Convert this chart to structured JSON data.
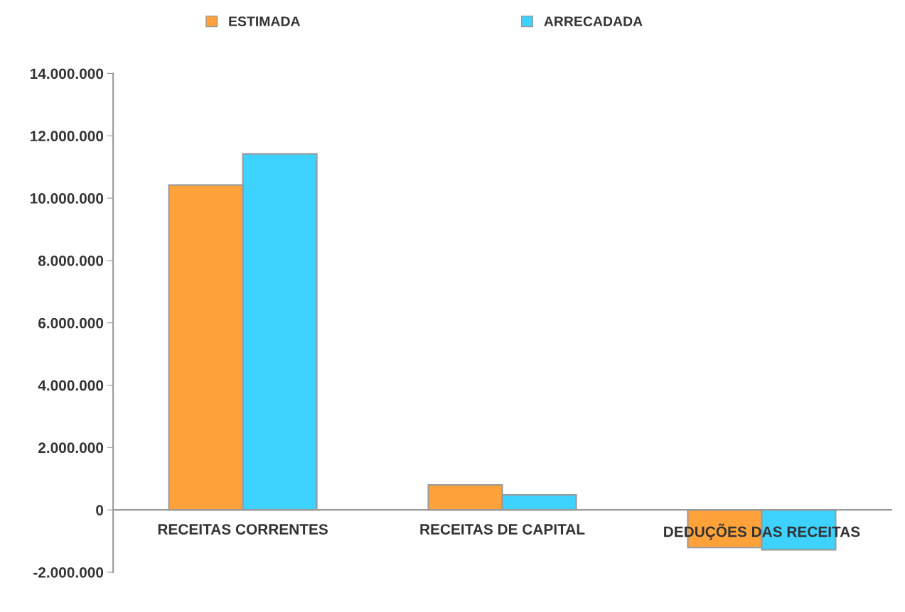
{
  "chart_data": {
    "type": "bar",
    "categories": [
      "RECEITAS CORRENTES",
      "RECEITAS DE CAPITAL",
      "DEDUÇÕES DAS RECEITAS"
    ],
    "series": [
      {
        "name": "ESTIMADA",
        "color": "#ffa23a",
        "values": [
          10420000,
          800000,
          -1210000
        ]
      },
      {
        "name": "ARRECADADA",
        "color": "#3dd2ff",
        "values": [
          11420000,
          480000,
          -1280000
        ]
      }
    ],
    "ylim": [
      -2000000,
      14000000
    ],
    "yticks": [
      {
        "value": -2000000,
        "label": "-2.000.000"
      },
      0,
      {
        "value": 2000000,
        "label": "2.000.000"
      },
      {
        "value": 4000000,
        "label": "4.000.000"
      },
      {
        "value": 6000000,
        "label": "6.000.000"
      },
      {
        "value": 8000000,
        "label": "8.000.000"
      },
      {
        "value": 10000000,
        "label": "10.000.000"
      },
      {
        "value": 12000000,
        "label": "12.000.000"
      },
      {
        "value": 14000000,
        "label": "14.000.000"
      }
    ],
    "grid": false,
    "legend": "top"
  }
}
